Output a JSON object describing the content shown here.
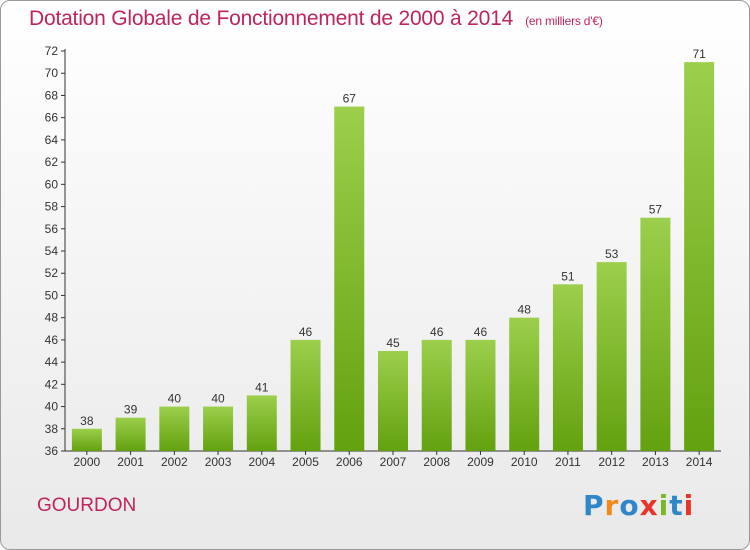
{
  "chart_data": {
    "type": "bar",
    "title": "Dotation Globale de Fonctionnement de 2000 à 2014",
    "subtitle": "(en milliers d'€)",
    "categories": [
      "2000",
      "2001",
      "2002",
      "2003",
      "2004",
      "2005",
      "2006",
      "2007",
      "2008",
      "2009",
      "2010",
      "2011",
      "2012",
      "2013",
      "2014"
    ],
    "values": [
      38,
      39,
      40,
      40,
      41,
      46,
      67,
      45,
      46,
      46,
      48,
      51,
      53,
      57,
      71
    ],
    "ylim": [
      36,
      72
    ],
    "ytick_step": 2,
    "grid": false,
    "bar_color_top": "#9ccf4c",
    "bar_color_bottom": "#63a10f"
  },
  "footer": {
    "city": "GOURDON",
    "logo_letters": [
      "P",
      "r",
      "o",
      "x",
      "i",
      "t",
      "i"
    ],
    "logo_colors": [
      "#2f86c8",
      "#f08a1c",
      "#2f86c8",
      "#e8352b",
      "#7ab82a",
      "#2f86c8",
      "#e8352b"
    ]
  }
}
